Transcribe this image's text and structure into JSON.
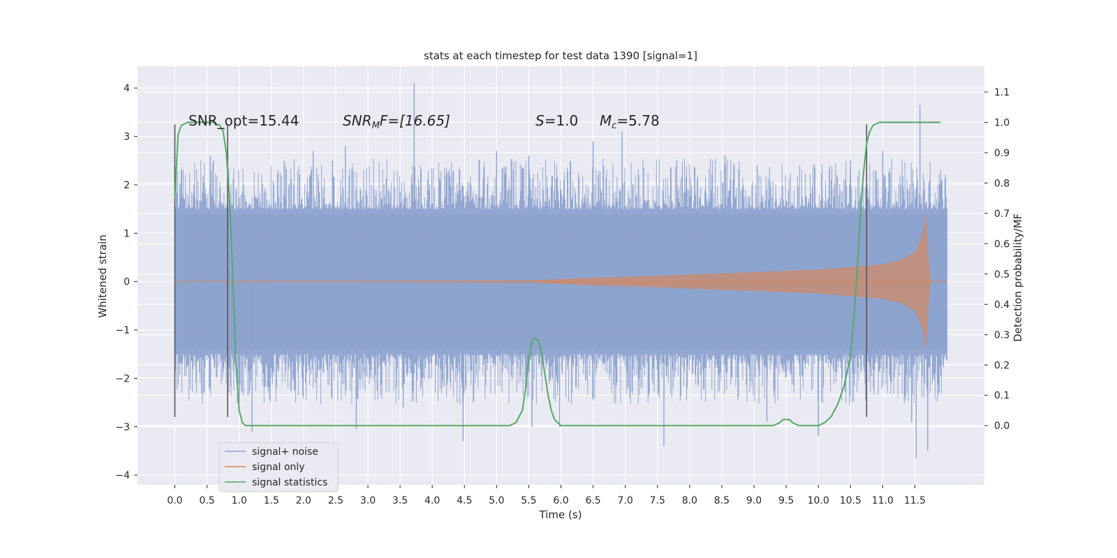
{
  "chart_data": {
    "type": "line",
    "title": "stats at each timestep for test data 1390 [signal=1]",
    "xlabel": "Time (s)",
    "ylabel_left": "Whitened strain",
    "ylabel_right": "Detection probability/MF",
    "xlim": [
      -0.58,
      12.58
    ],
    "ylim_left": [
      -4.2,
      4.45
    ],
    "ylim_right": [
      -0.195,
      1.185
    ],
    "x_ticks": [
      "0.0",
      "0.5",
      "1.0",
      "1.5",
      "2.0",
      "2.5",
      "3.0",
      "3.5",
      "4.0",
      "4.5",
      "5.0",
      "5.5",
      "6.0",
      "6.5",
      "7.0",
      "7.5",
      "8.0",
      "8.5",
      "9.0",
      "9.5",
      "10.0",
      "10.5",
      "11.0",
      "11.5"
    ],
    "y_ticks_left": [
      "4",
      "3",
      "2",
      "1",
      "0",
      "−1",
      "−2",
      "−3",
      "−4"
    ],
    "y_ticks_right": [
      "1.1",
      "1.0",
      "0.9",
      "0.8",
      "0.7",
      "0.6",
      "0.5",
      "0.4",
      "0.3",
      "0.2",
      "0.1",
      "0.0"
    ],
    "grid": true,
    "legend_position": "lower-left",
    "annotations": {
      "snr_opt": "SNR_opt=15.44",
      "snr_mf_label": "SNR",
      "snr_mf_sub": "M",
      "snr_mf_value": "F=[16.65]",
      "s_label": "S",
      "s_value": "=1.0",
      "mc_label": "M",
      "mc_sub": "c",
      "mc_value": "=5.78"
    },
    "series": [
      {
        "name": "signal+ noise",
        "color": "#8da3cf",
        "axis": "left",
        "x_range": [
          0.0,
          12.0
        ],
        "core_envelope": 1.4,
        "extreme_peaks": [
          [
            0.08,
            2.02
          ],
          [
            0.55,
            2.6
          ],
          [
            1.0,
            -2.5
          ],
          [
            1.2,
            -3.1
          ],
          [
            1.7,
            2.5
          ],
          [
            2.15,
            2.7
          ],
          [
            2.45,
            2.5
          ],
          [
            2.65,
            2.8
          ],
          [
            2.82,
            -3.05
          ],
          [
            3.72,
            4.1
          ],
          [
            3.55,
            -2.6
          ],
          [
            4.48,
            -3.3
          ],
          [
            5.0,
            2.7
          ],
          [
            5.5,
            2.6
          ],
          [
            5.55,
            -3.0
          ],
          [
            5.98,
            -3.0
          ],
          [
            6.5,
            2.9
          ],
          [
            6.95,
            3.1
          ],
          [
            7.6,
            -3.4
          ],
          [
            7.8,
            2.5
          ],
          [
            8.55,
            2.6
          ],
          [
            9.05,
            2.4
          ],
          [
            9.2,
            -2.9
          ],
          [
            10.0,
            -3.2
          ],
          [
            10.5,
            2.5
          ],
          [
            11.0,
            2.7
          ],
          [
            11.45,
            -2.9
          ],
          [
            11.58,
            3.65
          ],
          [
            11.52,
            -3.65
          ],
          [
            11.7,
            -3.5
          ],
          [
            11.92,
            2.1
          ],
          [
            11.95,
            -1.6
          ]
        ]
      },
      {
        "name": "signal only",
        "color": "#dd8452",
        "axis": "left",
        "chirp_amplitude": [
          [
            0.0,
            0.0
          ],
          [
            5.5,
            0.02
          ],
          [
            6.5,
            0.08
          ],
          [
            7.5,
            0.12
          ],
          [
            8.5,
            0.17
          ],
          [
            9.5,
            0.22
          ],
          [
            10.0,
            0.25
          ],
          [
            10.5,
            0.3
          ],
          [
            11.0,
            0.36
          ],
          [
            11.3,
            0.45
          ],
          [
            11.5,
            0.6
          ],
          [
            11.6,
            0.9
          ],
          [
            11.68,
            1.4
          ],
          [
            11.72,
            0.4
          ],
          [
            11.75,
            0.0
          ],
          [
            12.0,
            0.0
          ]
        ]
      },
      {
        "name": "signal statistics",
        "color": "#55a868",
        "axis": "right",
        "x": [
          0.0,
          0.05,
          0.1,
          0.2,
          0.3,
          0.4,
          0.5,
          0.6,
          0.7,
          0.75,
          0.8,
          0.85,
          0.9,
          0.95,
          1.0,
          1.05,
          1.1,
          1.2,
          1.5,
          2.0,
          3.0,
          4.0,
          4.4,
          4.6,
          5.0,
          5.2,
          5.3,
          5.4,
          5.45,
          5.5,
          5.55,
          5.6,
          5.65,
          5.7,
          5.75,
          5.8,
          5.85,
          5.9,
          5.95,
          6.0,
          6.05,
          6.1,
          6.3,
          6.8,
          7.0,
          7.2,
          7.8,
          8.5,
          9.0,
          9.3,
          9.4,
          9.45,
          9.5,
          9.55,
          9.6,
          9.7,
          9.8,
          10.0,
          10.1,
          10.2,
          10.3,
          10.4,
          10.5,
          10.55,
          10.6,
          10.65,
          10.7,
          10.75,
          10.8,
          10.85,
          10.9,
          10.95,
          11.0,
          11.1,
          11.3,
          11.6,
          11.8,
          11.9
        ],
        "y": [
          0.75,
          0.96,
          0.99,
          1.0,
          1.0,
          1.0,
          1.0,
          1.0,
          0.99,
          0.97,
          0.9,
          0.75,
          0.5,
          0.2,
          0.05,
          0.01,
          0.0,
          0.0,
          0.0,
          0.0,
          0.0,
          0.0,
          0.0,
          0.0,
          0.0,
          0.0,
          0.01,
          0.05,
          0.12,
          0.22,
          0.28,
          0.29,
          0.28,
          0.24,
          0.17,
          0.1,
          0.05,
          0.02,
          0.01,
          0.0,
          0.0,
          0.0,
          0.0,
          0.0,
          0.0,
          0.0,
          0.0,
          0.0,
          0.0,
          0.0,
          0.01,
          0.02,
          0.02,
          0.02,
          0.01,
          0.0,
          0.0,
          0.0,
          0.01,
          0.03,
          0.07,
          0.13,
          0.23,
          0.35,
          0.5,
          0.68,
          0.83,
          0.93,
          0.97,
          0.99,
          0.995,
          1.0,
          1.0,
          1.0,
          1.0,
          1.0,
          1.0,
          1.0
        ]
      }
    ],
    "vertical_markers": [
      {
        "x": 0.0,
        "ymin": -2.8,
        "ymax": 3.25
      },
      {
        "x": 0.82,
        "ymin": -2.8,
        "ymax": 3.25
      },
      {
        "x": 10.75,
        "ymin": -2.8,
        "ymax": 3.25
      }
    ]
  }
}
